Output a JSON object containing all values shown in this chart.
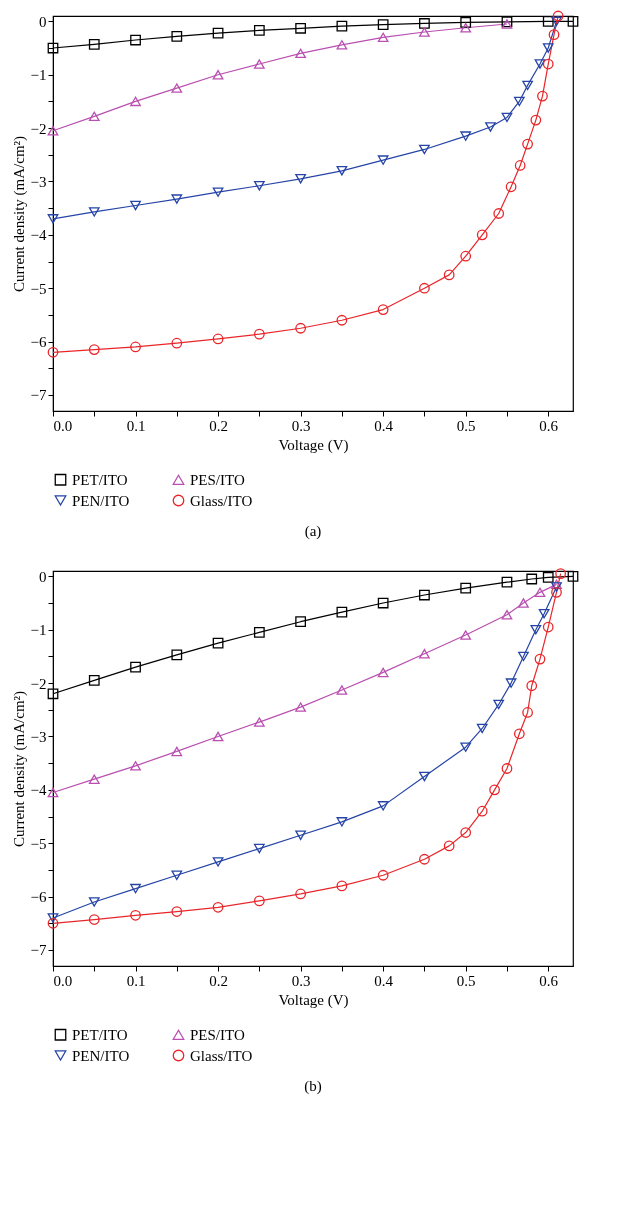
{
  "chart_data": [
    {
      "type": "line",
      "title": "(a)",
      "xlabel": "Voltage (V)",
      "ylabel": "Current density (mA/cm²)",
      "legend": "bottom",
      "grid": false,
      "xlim": [
        0,
        0.63
      ],
      "ylim": [
        -7.3,
        0.1
      ],
      "xticks": [
        {
          "value": 0,
          "label": "0.0"
        },
        {
          "value": 0.05,
          "label": null
        },
        {
          "value": 0.1,
          "label": "0.1"
        },
        {
          "value": 0.15,
          "label": null
        },
        {
          "value": 0.2,
          "label": "0.2"
        },
        {
          "value": 0.25,
          "label": null
        },
        {
          "value": 0.3,
          "label": "0.3"
        },
        {
          "value": 0.35,
          "label": null
        },
        {
          "value": 0.4,
          "label": "0.4"
        },
        {
          "value": 0.45,
          "label": null
        },
        {
          "value": 0.5,
          "label": "0.5"
        },
        {
          "value": 0.55,
          "label": null
        },
        {
          "value": 0.6,
          "label": "0.6"
        }
      ],
      "yticks": [
        {
          "value": -7,
          "label": "−7"
        },
        {
          "value": -6.5,
          "label": null
        },
        {
          "value": -6,
          "label": "−6"
        },
        {
          "value": -5.5,
          "label": null
        },
        {
          "value": -5,
          "label": "−5"
        },
        {
          "value": -4.5,
          "label": null
        },
        {
          "value": -4,
          "label": "−4"
        },
        {
          "value": -3.5,
          "label": null
        },
        {
          "value": -3,
          "label": "−3"
        },
        {
          "value": -2.5,
          "label": null
        },
        {
          "value": -2,
          "label": "−2"
        },
        {
          "value": -1.5,
          "label": null
        },
        {
          "value": -1,
          "label": "−1"
        },
        {
          "value": -0.5,
          "label": null
        },
        {
          "value": 0,
          "label": "0"
        }
      ],
      "series": [
        {
          "name": "PET/ITO",
          "color": "#000000",
          "marker": "square",
          "x": [
            0,
            0.05,
            0.1,
            0.15,
            0.2,
            0.25,
            0.3,
            0.35,
            0.4,
            0.45,
            0.5,
            0.55,
            0.6,
            0.63
          ],
          "values": [
            -0.5,
            -0.43,
            -0.35,
            -0.28,
            -0.22,
            -0.17,
            -0.13,
            -0.09,
            -0.06,
            -0.04,
            -0.02,
            -0.01,
            0,
            0
          ]
        },
        {
          "name": "PES/ITO",
          "color": "#b94fb0",
          "marker": "triangle",
          "x": [
            0,
            0.05,
            0.1,
            0.15,
            0.2,
            0.25,
            0.3,
            0.35,
            0.4,
            0.45,
            0.5,
            0.55
          ],
          "values": [
            -2.05,
            -1.78,
            -1.5,
            -1.25,
            -1.0,
            -0.8,
            -0.6,
            -0.44,
            -0.3,
            -0.2,
            -0.12,
            -0.05
          ]
        },
        {
          "name": "PEN/ITO",
          "color": "#2544a6",
          "marker": "triangle-down",
          "x": [
            0,
            0.05,
            0.1,
            0.15,
            0.2,
            0.25,
            0.3,
            0.35,
            0.4,
            0.45,
            0.5,
            0.53,
            0.55,
            0.565,
            0.575,
            0.59,
            0.6,
            0.61
          ],
          "values": [
            -3.7,
            -3.57,
            -3.45,
            -3.33,
            -3.2,
            -3.08,
            -2.95,
            -2.8,
            -2.6,
            -2.4,
            -2.15,
            -1.98,
            -1.8,
            -1.5,
            -1.2,
            -0.8,
            -0.5,
            0
          ]
        },
        {
          "name": "Glass/ITO",
          "color": "#e8262a",
          "marker": "circle",
          "x": [
            0,
            0.05,
            0.1,
            0.15,
            0.2,
            0.25,
            0.3,
            0.35,
            0.4,
            0.45,
            0.48,
            0.5,
            0.52,
            0.54,
            0.555,
            0.566,
            0.575,
            0.585,
            0.593,
            0.6,
            0.607,
            0.612
          ],
          "values": [
            -6.2,
            -6.15,
            -6.1,
            -6.03,
            -5.95,
            -5.86,
            -5.75,
            -5.6,
            -5.4,
            -5.0,
            -4.75,
            -4.4,
            -4.0,
            -3.6,
            -3.1,
            -2.7,
            -2.3,
            -1.85,
            -1.4,
            -0.8,
            -0.25,
            0.1
          ]
        }
      ]
    },
    {
      "type": "line",
      "title": "(b)",
      "xlabel": "Voltage (V)",
      "ylabel": "Current density (mA/cm²)",
      "legend": "bottom",
      "grid": false,
      "xlim": [
        0,
        0.63
      ],
      "ylim": [
        -7.3,
        0.1
      ],
      "xticks": [
        {
          "value": 0,
          "label": "0.0"
        },
        {
          "value": 0.05,
          "label": null
        },
        {
          "value": 0.1,
          "label": "0.1"
        },
        {
          "value": 0.15,
          "label": null
        },
        {
          "value": 0.2,
          "label": "0.2"
        },
        {
          "value": 0.25,
          "label": null
        },
        {
          "value": 0.3,
          "label": "0.3"
        },
        {
          "value": 0.35,
          "label": null
        },
        {
          "value": 0.4,
          "label": "0.4"
        },
        {
          "value": 0.45,
          "label": null
        },
        {
          "value": 0.5,
          "label": "0.5"
        },
        {
          "value": 0.55,
          "label": null
        },
        {
          "value": 0.6,
          "label": "0.6"
        }
      ],
      "yticks": [
        {
          "value": -7,
          "label": "−7"
        },
        {
          "value": -6.5,
          "label": null
        },
        {
          "value": -6,
          "label": "−6"
        },
        {
          "value": -5.5,
          "label": null
        },
        {
          "value": -5,
          "label": "−5"
        },
        {
          "value": -4.5,
          "label": null
        },
        {
          "value": -4,
          "label": "−4"
        },
        {
          "value": -3.5,
          "label": null
        },
        {
          "value": -3,
          "label": "−3"
        },
        {
          "value": -2.5,
          "label": null
        },
        {
          "value": -2,
          "label": "−2"
        },
        {
          "value": -1.5,
          "label": null
        },
        {
          "value": -1,
          "label": "−1"
        },
        {
          "value": -0.5,
          "label": null
        },
        {
          "value": 0,
          "label": "0"
        }
      ],
      "series": [
        {
          "name": "PET/ITO",
          "color": "#000000",
          "marker": "square",
          "x": [
            0,
            0.05,
            0.1,
            0.15,
            0.2,
            0.25,
            0.3,
            0.35,
            0.4,
            0.45,
            0.5,
            0.55,
            0.58,
            0.6,
            0.63
          ],
          "values": [
            -2.2,
            -1.95,
            -1.7,
            -1.47,
            -1.25,
            -1.05,
            -0.85,
            -0.67,
            -0.5,
            -0.35,
            -0.22,
            -0.11,
            -0.05,
            -0.02,
            0
          ]
        },
        {
          "name": "PES/ITO",
          "color": "#b94fb0",
          "marker": "triangle",
          "x": [
            0,
            0.05,
            0.1,
            0.15,
            0.2,
            0.25,
            0.3,
            0.35,
            0.4,
            0.45,
            0.5,
            0.55,
            0.57,
            0.59,
            0.61
          ],
          "values": [
            -4.05,
            -3.8,
            -3.55,
            -3.28,
            -3.0,
            -2.73,
            -2.45,
            -2.13,
            -1.8,
            -1.45,
            -1.1,
            -0.72,
            -0.5,
            -0.3,
            -0.15
          ]
        },
        {
          "name": "PEN/ITO",
          "color": "#2544a6",
          "marker": "triangle-down",
          "x": [
            0,
            0.05,
            0.1,
            0.15,
            0.2,
            0.25,
            0.3,
            0.35,
            0.4,
            0.45,
            0.5,
            0.52,
            0.54,
            0.555,
            0.57,
            0.585,
            0.595,
            0.61
          ],
          "values": [
            -6.4,
            -6.1,
            -5.85,
            -5.6,
            -5.35,
            -5.1,
            -4.85,
            -4.6,
            -4.3,
            -3.75,
            -3.2,
            -2.85,
            -2.4,
            -2.0,
            -1.5,
            -1.0,
            -0.7,
            -0.2
          ]
        },
        {
          "name": "Glass/ITO",
          "color": "#e8262a",
          "marker": "circle",
          "x": [
            0,
            0.05,
            0.1,
            0.15,
            0.2,
            0.25,
            0.3,
            0.35,
            0.4,
            0.45,
            0.48,
            0.5,
            0.52,
            0.535,
            0.55,
            0.565,
            0.575,
            0.58,
            0.59,
            0.6,
            0.61,
            0.615
          ],
          "values": [
            -6.5,
            -6.43,
            -6.35,
            -6.28,
            -6.2,
            -6.08,
            -5.95,
            -5.8,
            -5.6,
            -5.3,
            -5.05,
            -4.8,
            -4.4,
            -4.0,
            -3.6,
            -2.95,
            -2.55,
            -2.05,
            -1.55,
            -0.95,
            -0.3,
            0.05
          ]
        }
      ]
    }
  ]
}
